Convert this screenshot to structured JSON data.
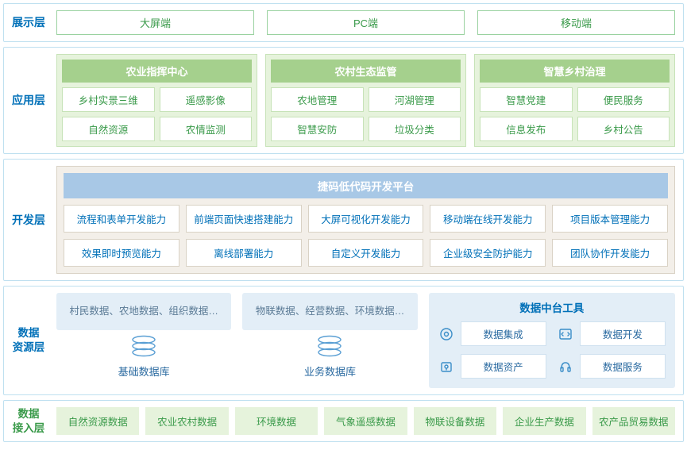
{
  "colors": {
    "border_blue": "#bfe0f0",
    "label_blue": "#0070b8",
    "green_border": "#9ad2a0",
    "green_text": "#3a9a4a",
    "app_group_bg": "#e6f3dc",
    "app_group_border": "#c7e3b8",
    "app_group_title_bg": "#a5d08d",
    "dev_panel_bg": "#f3efe9",
    "dev_panel_border": "#d9d2c5",
    "dev_title_bg": "#a8c8e6",
    "data_bg": "#e3eef7",
    "data_text": "#5a7a95",
    "tool_icon": "#3a8dc8",
    "tool_border": "#cfe1ef",
    "tool_text": "#2a6aa0"
  },
  "layers": {
    "display": {
      "label": "展示层",
      "items": [
        "大屏端",
        "PC端",
        "移动端"
      ]
    },
    "application": {
      "label": "应用层",
      "groups": [
        {
          "title": "农业指挥中心",
          "rows": [
            [
              "乡村实景三维",
              "遥感影像"
            ],
            [
              "自然资源",
              "农情监测"
            ]
          ]
        },
        {
          "title": "农村生态监管",
          "rows": [
            [
              "农地管理",
              "河湖管理"
            ],
            [
              "智慧安防",
              "垃圾分类"
            ]
          ]
        },
        {
          "title": "智慧乡村治理",
          "rows": [
            [
              "智慧党建",
              "便民服务"
            ],
            [
              "信息发布",
              "乡村公告"
            ]
          ]
        }
      ]
    },
    "dev": {
      "label": "开发层",
      "title": "捷码低代码开发平台",
      "rows": [
        [
          "流程和表单开发能力",
          "前端页面快速搭建能力",
          "大屏可视化开发能力",
          "移动端在线开发能力",
          "项目版本管理能力"
        ],
        [
          "效果即时预览能力",
          "离线部署能力",
          "自定义开发能力",
          "企业级安全防护能力",
          "团队协作开发能力"
        ]
      ]
    },
    "data": {
      "label": "数据\n资源层",
      "dbs": [
        {
          "desc": "村民数据、农地数据、组织数据…",
          "name": "基础数据库"
        },
        {
          "desc": "物联数据、经营数据、环境数据…",
          "name": "业务数据库"
        }
      ],
      "tools": {
        "title": "数据中台工具",
        "items": [
          {
            "icon": "⚙",
            "label": "数据集成"
          },
          {
            "icon": "</>",
            "label": "数据开发"
          },
          {
            "icon": "🔒",
            "label": "数据资产"
          },
          {
            "icon": "🎧",
            "label": "数据服务"
          }
        ]
      }
    },
    "ingest": {
      "label": "数据\n接入层",
      "items": [
        "自然资源数据",
        "农业农村数据",
        "环境数据",
        "气象遥感数据",
        "物联设备数据",
        "企业生产数据",
        "农产品贸易数据"
      ]
    }
  }
}
